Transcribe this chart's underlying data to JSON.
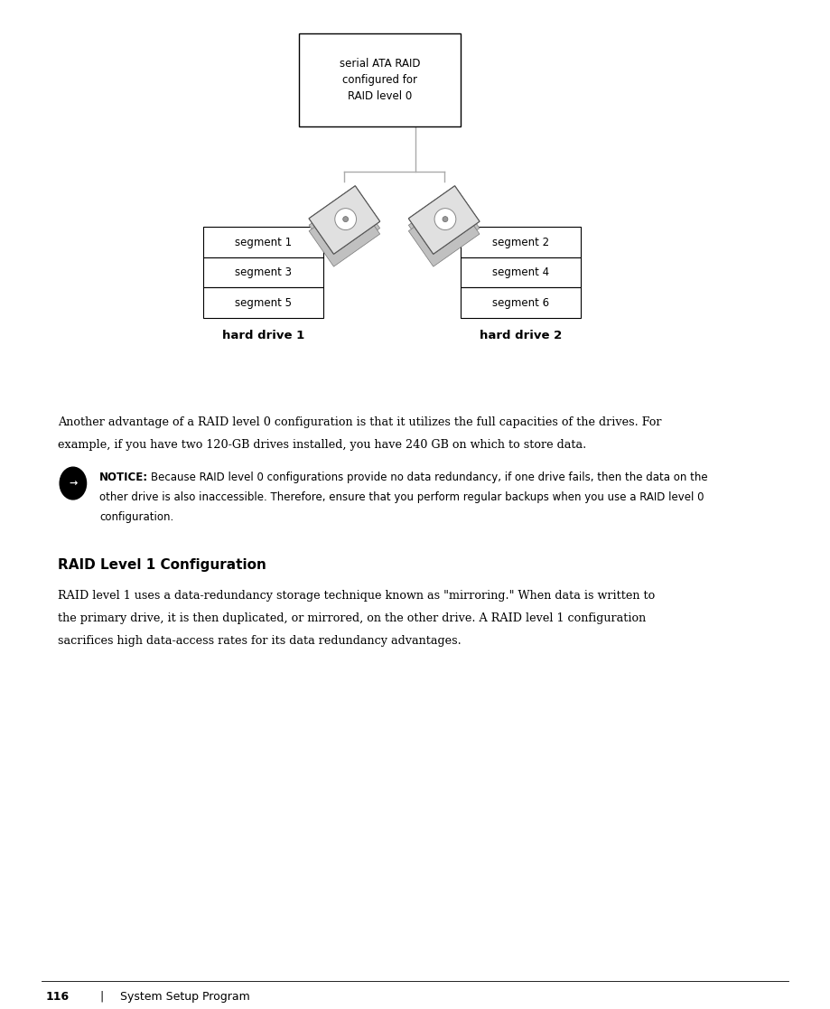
{
  "bg_color": "#ffffff",
  "page_width": 9.19,
  "page_height": 11.17,
  "dpi": 100,
  "top_box_text": "serial ATA RAID\nconfigured for\nRAID level 0",
  "hd1_label": "hard drive 1",
  "hd2_label": "hard drive 2",
  "left_segments": [
    "segment 1",
    "segment 3",
    "segment 5"
  ],
  "right_segments": [
    "segment 2",
    "segment 4",
    "segment 6"
  ],
  "paragraph1_line1": "Another advantage of a RAID level 0 configuration is that it utilizes the full capacities of the drives. For",
  "paragraph1_line2": "example, if you have two 120-GB drives installed, you have 240 GB on which to store data.",
  "notice_label": "NOTICE:",
  "notice_body": "Because RAID level 0 configurations provide no data redundancy, if one drive fails, then the data on the\nother drive is also inaccessible. Therefore, ensure that you perform regular backups when you use a RAID level 0\nconfiguration.",
  "heading": "RAID Level 1 Configuration",
  "paragraph2_line1": "RAID level 1 uses a data-redundancy storage technique known as \"mirroring.\" When data is written to",
  "paragraph2_line2": "the primary drive, it is then duplicated, or mirrored, on the other drive. A RAID level 1 configuration",
  "paragraph2_line3": "sacrifices high data-access rates for its data redundancy advantages.",
  "footer_page": "116",
  "footer_sep": "|",
  "footer_text": "System Setup Program"
}
